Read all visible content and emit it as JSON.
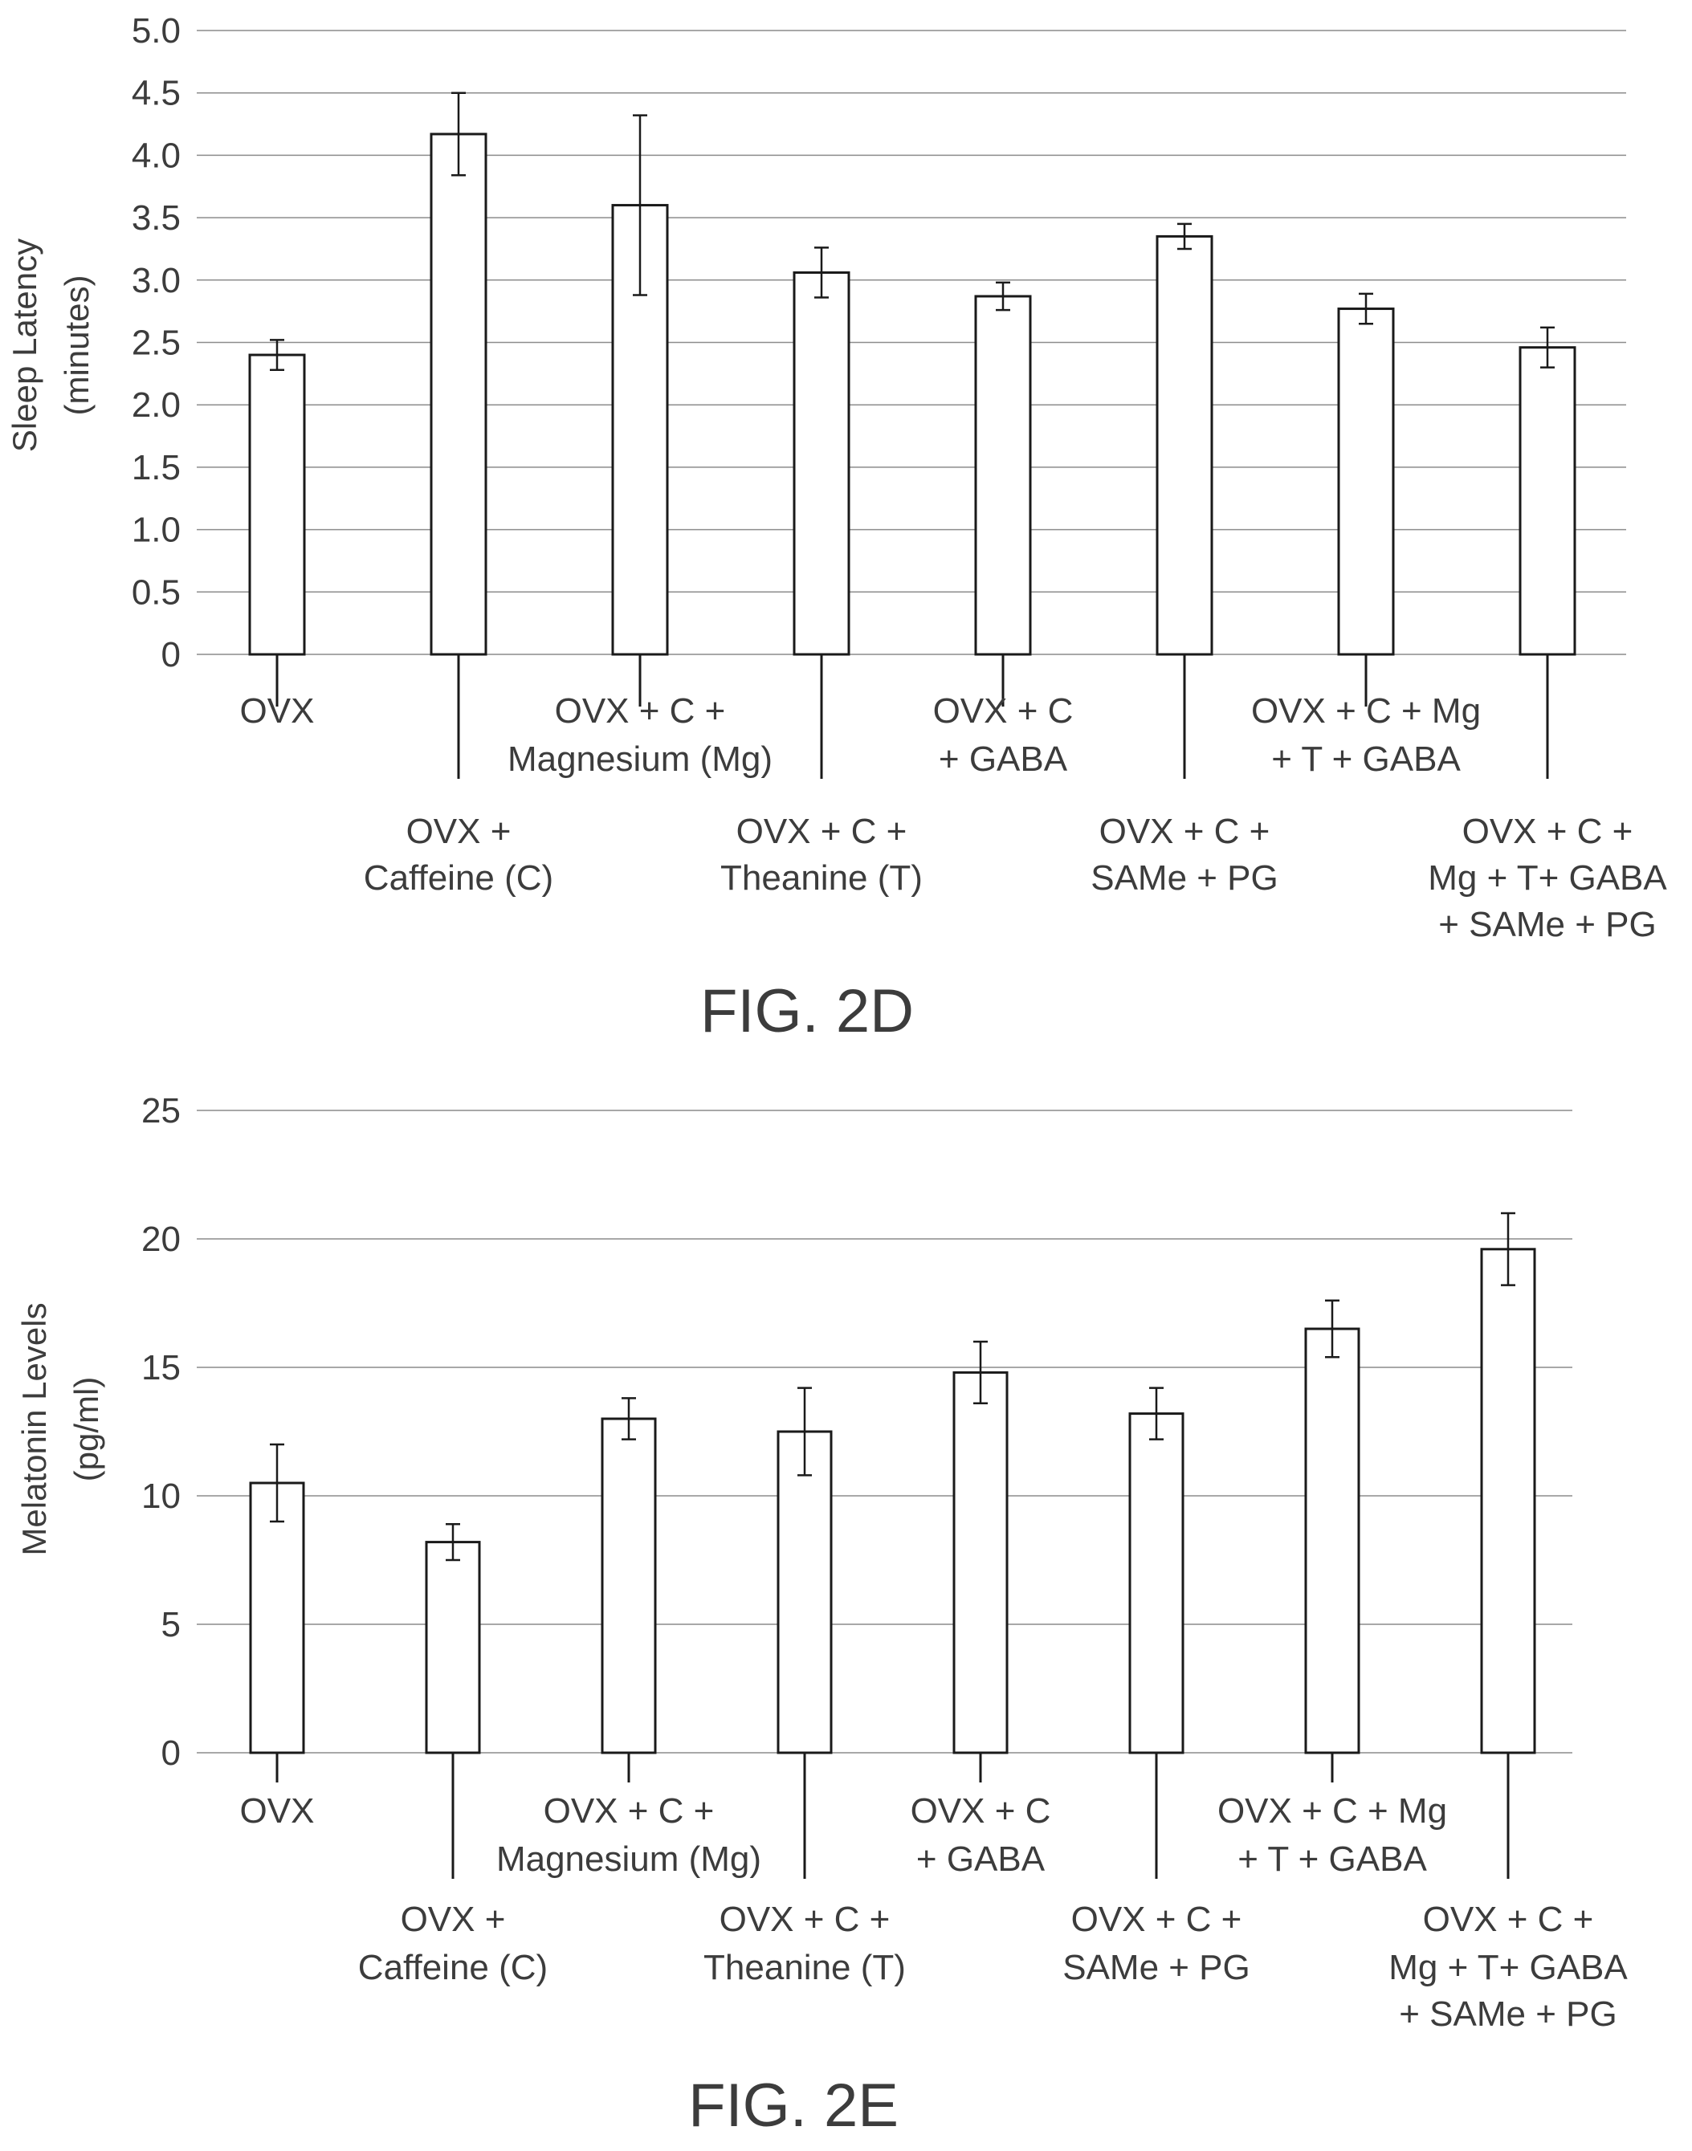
{
  "chart_data": [
    {
      "type": "bar",
      "caption": "FIG. 2D",
      "ylabel": [
        "Sleep Latency",
        "(minutes)"
      ],
      "ylim": [
        0,
        5
      ],
      "ytick_labels": [
        "0",
        "0.5",
        "1.0",
        "1.5",
        "2.0",
        "2.5",
        "3.0",
        "3.5",
        "4.0",
        "4.5",
        "5.0"
      ],
      "grid": true,
      "categories": [
        [
          "OVX"
        ],
        [
          "OVX +",
          "Caffeine (C)"
        ],
        [
          "OVX + C +",
          "Magnesium (Mg)"
        ],
        [
          "OVX + C +",
          "Theanine (T)"
        ],
        [
          "OVX + C",
          "+ GABA"
        ],
        [
          "OVX + C +",
          "SAMe + PG"
        ],
        [
          "OVX + C + Mg",
          "+ T + GABA"
        ],
        [
          "OVX + C +",
          "Mg + T+ GABA",
          "+ SAMe + PG"
        ]
      ],
      "values": [
        2.4,
        4.17,
        3.6,
        3.06,
        2.87,
        3.35,
        2.77,
        2.46
      ],
      "errors": [
        0.12,
        0.33,
        0.72,
        0.2,
        0.11,
        0.1,
        0.12,
        0.16
      ]
    },
    {
      "type": "bar",
      "caption": "FIG. 2E",
      "ylabel": [
        "Melatonin Levels",
        "(pg/ml)"
      ],
      "ylim": [
        0,
        25
      ],
      "ytick_labels": [
        "0",
        "5",
        "10",
        "15",
        "20",
        "25"
      ],
      "grid": true,
      "categories": [
        [
          "OVX"
        ],
        [
          "OVX +",
          "Caffeine (C)"
        ],
        [
          "OVX + C +",
          "Magnesium (Mg)"
        ],
        [
          "OVX + C +",
          "Theanine (T)"
        ],
        [
          "OVX + C",
          "+ GABA"
        ],
        [
          "OVX + C +",
          "SAMe + PG"
        ],
        [
          "OVX + C + Mg",
          "+ T + GABA"
        ],
        [
          "OVX + C +",
          "Mg + T+ GABA",
          "+ SAMe + PG"
        ]
      ],
      "values": [
        10.5,
        8.2,
        13.0,
        12.5,
        14.8,
        13.2,
        16.5,
        19.6
      ],
      "errors": [
        1.5,
        0.7,
        0.8,
        1.7,
        1.2,
        1.0,
        1.1,
        1.4
      ]
    }
  ]
}
